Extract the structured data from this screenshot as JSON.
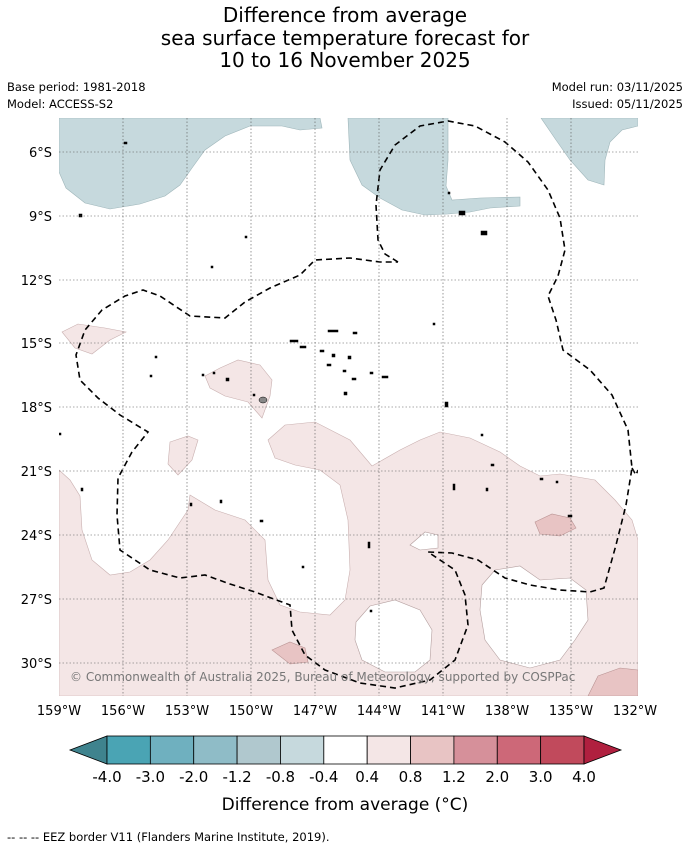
{
  "title": {
    "line1": "Difference from average",
    "line2": "sea surface temperature forecast for",
    "line3": "10 to 16 November 2025"
  },
  "meta": {
    "base_period": "Base period: 1981-2018",
    "model": "Model: ACCESS-S2",
    "model_run": "Model run: 03/11/2025",
    "issued": "Issued: 05/11/2025"
  },
  "map": {
    "copyright": "© Commonwealth of Australia 2025, Bureau of Meteorology, supported by COSPPac",
    "lat_labels": [
      "6°S",
      "9°S",
      "12°S",
      "15°S",
      "18°S",
      "21°S",
      "24°S",
      "27°S",
      "30°S"
    ],
    "lon_labels": [
      "159°W",
      "156°W",
      "153°W",
      "150°W",
      "147°W",
      "144°W",
      "141°W",
      "138°W",
      "135°W",
      "132°W"
    ],
    "colors": {
      "cool_fill": "#c6d9dd",
      "warm_fill": "#f4e6e6",
      "warm_fill_2": "#e8c4c4",
      "island": "#000000",
      "grid": "#555555"
    }
  },
  "colorbar": {
    "title": "Difference from average (°C)",
    "ticks": [
      "-4.0",
      "-3.0",
      "-2.0",
      "-1.2",
      "-0.8",
      "-0.4",
      "0.4",
      "0.8",
      "1.2",
      "2.0",
      "3.0",
      "4.0"
    ],
    "colors": [
      "#3f838e",
      "#4aa4b4",
      "#6fb0bf",
      "#8fbcc7",
      "#b0c8ce",
      "#c6d9dd",
      "#ffffff",
      "#f4e6e6",
      "#e8c4c4",
      "#d6909a",
      "#cd6878",
      "#c14a5c",
      "#b0203f"
    ]
  },
  "legend": {
    "eez": "--  --  -- EEZ border V11 (Flanders Marine Institute, 2019)."
  }
}
